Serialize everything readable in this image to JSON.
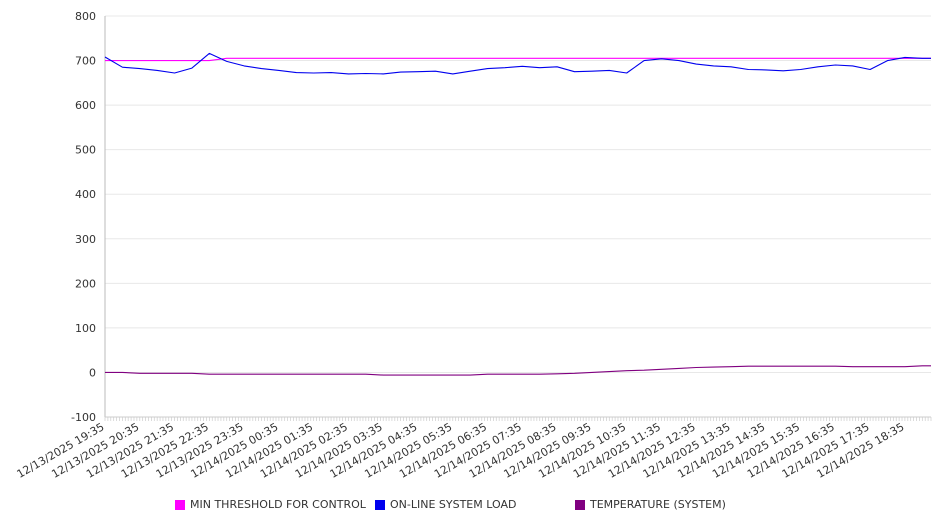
{
  "chart_data": {
    "type": "line",
    "title": "",
    "xlabel": "",
    "ylabel": "",
    "ylim": [
      -100,
      800
    ],
    "y_ticks": [
      "800",
      "700",
      "600",
      "500",
      "400",
      "300",
      "200",
      "100",
      "0",
      "-100"
    ],
    "y_tick_values": [
      800,
      700,
      600,
      500,
      400,
      300,
      200,
      100,
      0,
      -100
    ],
    "grid": true,
    "legend_position": "bottom",
    "x_start": "12/13/2025 19:35",
    "x_range_hours": 23.75,
    "interval_minutes": 30,
    "x_tick_labels": [
      "12/13/2025 19:35",
      "12/13/2025 20:35",
      "12/13/2025 21:35",
      "12/13/2025 22:35",
      "12/13/2025 23:35",
      "12/14/2025 00:35",
      "12/14/2025 01:35",
      "12/14/2025 02:35",
      "12/14/2025 03:35",
      "12/14/2025 04:35",
      "12/14/2025 05:35",
      "12/14/2025 06:35",
      "12/14/2025 07:35",
      "12/14/2025 08:35",
      "12/14/2025 09:35",
      "12/14/2025 10:35",
      "12/14/2025 11:35",
      "12/14/2025 12:35",
      "12/14/2025 13:35",
      "12/14/2025 14:35",
      "12/14/2025 15:35",
      "12/14/2025 16:35",
      "12/14/2025 17:35",
      "12/14/2025 18:35"
    ],
    "series": [
      {
        "name": "MIN THRESHOLD FOR CONTROL",
        "color": "#ff00ff",
        "values": [
          700,
          700,
          700,
          700,
          700,
          700,
          700,
          705,
          705,
          705,
          705,
          705,
          705,
          705,
          705,
          705,
          705,
          705,
          705,
          705,
          705,
          705,
          705,
          705,
          705,
          705,
          705,
          705,
          705,
          705,
          705,
          705,
          705,
          705,
          705,
          705,
          705,
          705,
          705,
          705,
          705,
          705,
          705,
          705,
          705,
          705,
          705,
          705
        ]
      },
      {
        "name": "ON-LINE SYSTEM LOAD",
        "color": "#0000ee",
        "values": [
          708,
          685,
          682,
          678,
          672,
          683,
          716,
          698,
          688,
          682,
          678,
          673,
          672,
          673,
          670,
          671,
          670,
          674,
          675,
          676,
          670,
          676,
          682,
          684,
          687,
          684,
          686,
          675,
          676,
          678,
          672,
          700,
          704,
          700,
          692,
          688,
          686,
          680,
          679,
          677,
          680,
          686,
          690,
          688,
          680,
          700,
          707,
          705
        ]
      },
      {
        "name": "TEMPERATURE (SYSTEM)",
        "color": "#800080",
        "values": [
          0,
          0,
          -2,
          -2,
          -2,
          -2,
          -4,
          -4,
          -4,
          -4,
          -4,
          -4,
          -4,
          -4,
          -4,
          -4,
          -6,
          -6,
          -6,
          -6,
          -6,
          -6,
          -4,
          -4,
          -4,
          -4,
          -3,
          -2,
          0,
          2,
          4,
          5,
          7,
          9,
          11,
          12,
          13,
          14,
          14,
          14,
          14,
          14,
          14,
          13,
          13,
          13,
          13,
          15
        ]
      }
    ]
  }
}
